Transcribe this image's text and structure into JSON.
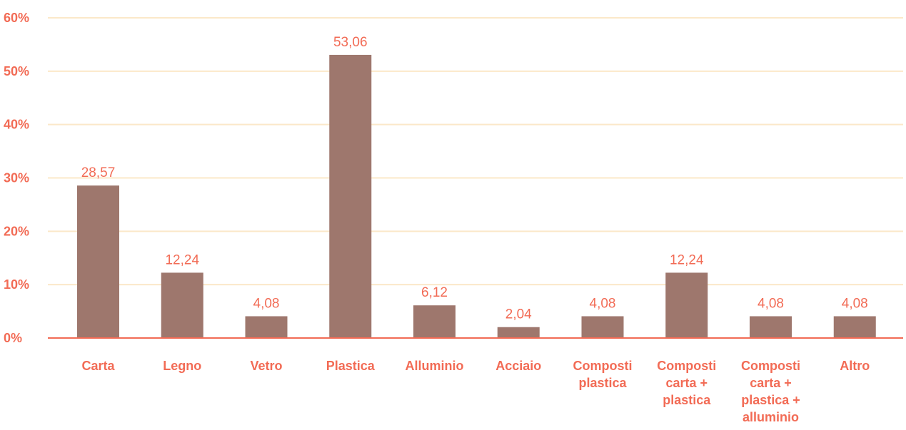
{
  "chart_data": {
    "type": "bar",
    "title": "",
    "xlabel": "",
    "ylabel": "",
    "categories": [
      [
        "Carta"
      ],
      [
        "Legno"
      ],
      [
        "Vetro"
      ],
      [
        "Plastica"
      ],
      [
        "Alluminio"
      ],
      [
        "Acciaio"
      ],
      [
        "Composti",
        "plastica"
      ],
      [
        "Composti",
        "carta +",
        "plastica"
      ],
      [
        "Composti",
        "carta +",
        "plastica +",
        "alluminio"
      ],
      [
        "Altro"
      ]
    ],
    "values": [
      28.57,
      12.24,
      4.08,
      53.06,
      6.12,
      2.04,
      4.08,
      12.24,
      4.08,
      4.08
    ],
    "data_labels": [
      "28,57",
      "12,24",
      "4,08",
      "53,06",
      "6,12",
      "2,04",
      "4,08",
      "12,24",
      "4,08",
      "4,08"
    ],
    "ylim": [
      0,
      60
    ],
    "yticks": [
      0,
      10,
      20,
      30,
      40,
      50,
      60
    ],
    "ytick_labels": [
      "0%",
      "10%",
      "20%",
      "30%",
      "40%",
      "50%",
      "60%"
    ],
    "grid": true,
    "legend": "none",
    "colors": {
      "bar": "#9e776d",
      "label": "#f26b55",
      "grid": "#fbe8c9",
      "baseline": "#f26b55"
    }
  }
}
